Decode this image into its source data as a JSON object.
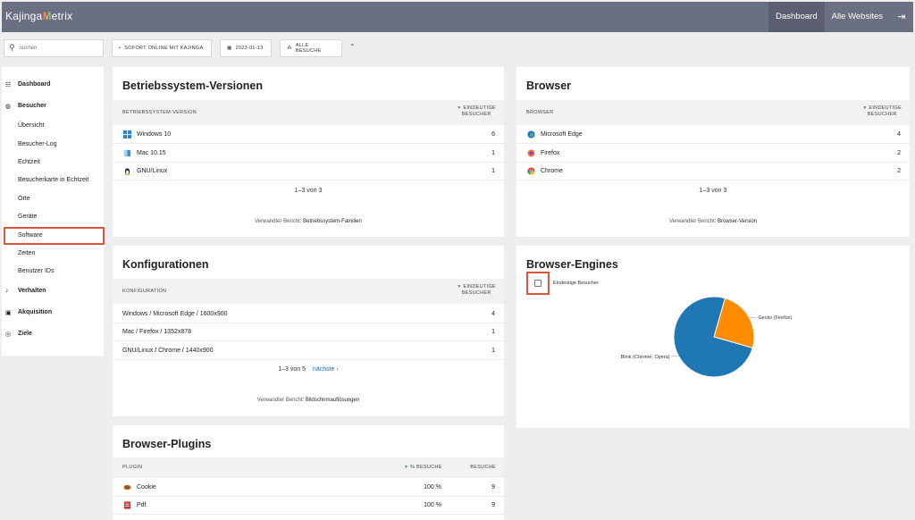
{
  "header": {
    "logo_prefix": "Kajinga",
    "logo_mark": "M",
    "logo_suffix": "etrix",
    "nav": [
      "Dashboard",
      "Alle Websites"
    ],
    "logout_icon": "logout-icon"
  },
  "toolbar": {
    "search_placeholder": "Suchen",
    "online_label": "SOFORT ONLINE MIT KAJINGA",
    "date_label": "2023-01-13",
    "segment_label": "ALLE BESUCHE"
  },
  "sidebar": {
    "dashboard": "Dashboard",
    "besucher": "Besucher",
    "sub": [
      "Übersicht",
      "Besucher-Log",
      "Echtzeit",
      "Besucherkarte in Echtzeit",
      "Orte",
      "Geräte",
      "Software",
      "Zeiten",
      "Benutzer IDs"
    ],
    "verhalten": "Verhalten",
    "akquisition": "Akquisition",
    "ziele": "Ziele"
  },
  "os_card": {
    "title": "Betriebssystem-Versionen",
    "col1": "BETRIEBSSYSTEM-VERSION",
    "col2_a": "EINDEUTIGE",
    "col2_b": "BESUCHER",
    "rows": [
      {
        "label": "Windows 10",
        "value": "6",
        "icon": "windows-icon"
      },
      {
        "label": "Mac 10.15",
        "value": "1",
        "icon": "mac-icon"
      },
      {
        "label": "GNU/Linux",
        "value": "1",
        "icon": "linux-icon"
      }
    ],
    "pager": "1–3 von 3",
    "related_prefix": "Verwandter Bericht:",
    "related_link": "Betriebssystem-Familien"
  },
  "browser_card": {
    "title": "Browser",
    "col1": "BROWSER",
    "col2_a": "EINDEUTIGE",
    "col2_b": "BESUCHER",
    "rows": [
      {
        "label": "Microsoft Edge",
        "value": "4",
        "icon": "edge-icon"
      },
      {
        "label": "Firefox",
        "value": "2",
        "icon": "firefox-icon"
      },
      {
        "label": "Chrome",
        "value": "2",
        "icon": "chrome-icon"
      }
    ],
    "pager": "1–3 von 3",
    "related_prefix": "Verwandter Bericht:",
    "related_link": "Browser-Version"
  },
  "config_card": {
    "title": "Konfigurationen",
    "col1": "KONFIGURATION",
    "col2_a": "EINDEUTIGE",
    "col2_b": "BESUCHER",
    "rows": [
      {
        "label": "Windows / Microsoft Edge / 1600x900",
        "value": "4"
      },
      {
        "label": "Mac / Firefox / 1352x878",
        "value": "1"
      },
      {
        "label": "GNU/Linux / Chrome / 1440x900",
        "value": "1"
      }
    ],
    "pager": "1–3 von 5",
    "next": "nächste ›",
    "related_prefix": "Verwandter Bericht:",
    "related_link": "Bildschirmauflösungen"
  },
  "engines_card": {
    "title": "Browser-Engines",
    "legend": "Eindeutige Besucher",
    "slices": [
      {
        "label": "Blink (Chrome, Opera)",
        "value": 6,
        "color": "#1f77b4"
      },
      {
        "label": "Gecko (Firefox)",
        "value": 2,
        "color": "#ff8c00"
      }
    ]
  },
  "plugins_card": {
    "title": "Browser-Plugins",
    "col1": "PLUGIN",
    "col2": "% BESUCHE",
    "col3": "BESUCHE",
    "rows": [
      {
        "label": "Cookie",
        "pct": "100 %",
        "value": "9",
        "icon": "cookie-icon"
      },
      {
        "label": "Pdf",
        "pct": "100 %",
        "value": "9",
        "icon": "pdf-icon"
      }
    ]
  }
}
